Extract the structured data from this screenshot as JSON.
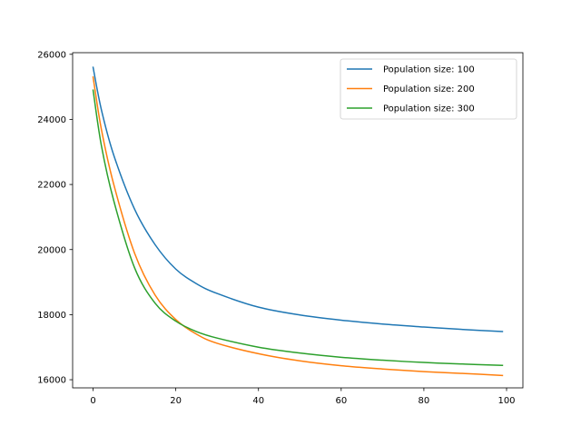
{
  "chart_data": {
    "type": "line",
    "title": "",
    "xlabel": "",
    "ylabel": "",
    "xlim": [
      -4.95,
      103.95
    ],
    "ylim": [
      15750,
      26050
    ],
    "x_ticks": [
      0,
      20,
      40,
      60,
      80,
      100
    ],
    "y_ticks": [
      16000,
      18000,
      20000,
      22000,
      24000,
      26000
    ],
    "x_tick_labels": [
      "0",
      "20",
      "40",
      "60",
      "80",
      "100"
    ],
    "y_tick_labels": [
      "16000",
      "18000",
      "20000",
      "22000",
      "24000",
      "26000"
    ],
    "grid": false,
    "legend_position": "top-right",
    "x": [
      0,
      2,
      5,
      10,
      15,
      20,
      25,
      30,
      40,
      50,
      60,
      70,
      80,
      90,
      99
    ],
    "series": [
      {
        "name": "Population size: 100",
        "color": "#1f77b4",
        "values": [
          25600,
          24300,
          22900,
          21250,
          20150,
          19400,
          18950,
          18650,
          18230,
          17990,
          17830,
          17710,
          17620,
          17540,
          17480
        ]
      },
      {
        "name": "Population size: 200",
        "color": "#ff7f0e",
        "values": [
          25300,
          23700,
          22000,
          19900,
          18600,
          17850,
          17400,
          17120,
          16800,
          16580,
          16430,
          16330,
          16250,
          16190,
          16130
        ]
      },
      {
        "name": "Population size: 300",
        "color": "#2ca02c",
        "values": [
          24900,
          23200,
          21500,
          19450,
          18350,
          17800,
          17480,
          17280,
          17000,
          16820,
          16690,
          16600,
          16530,
          16480,
          16440
        ]
      }
    ]
  }
}
